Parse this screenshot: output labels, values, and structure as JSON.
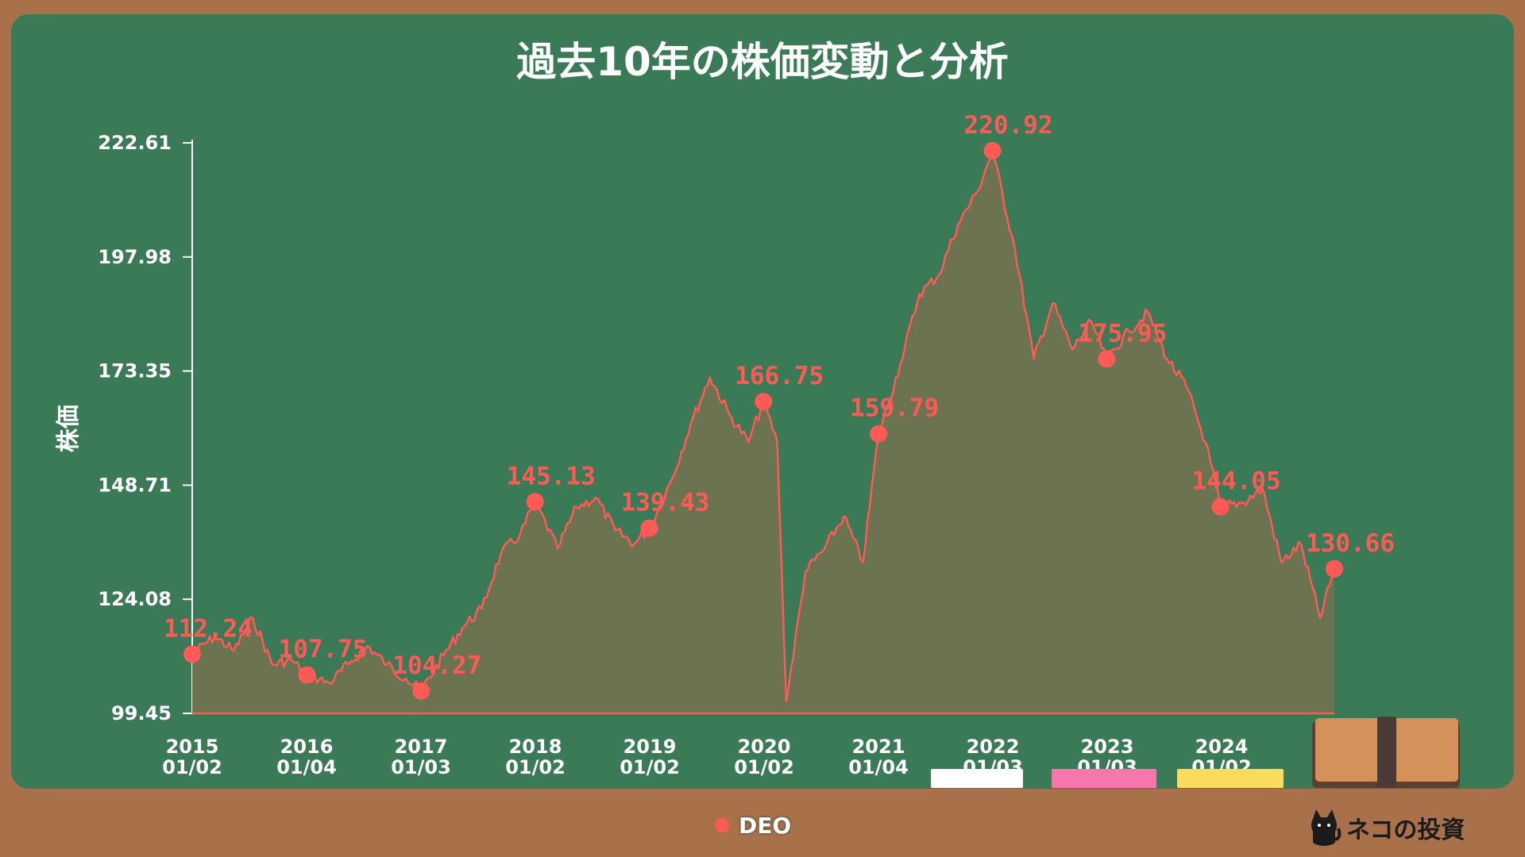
{
  "title": "過去10年の株価変動と分析",
  "ylabel": "株価",
  "legend": {
    "label": "DEO",
    "color": "#ff5a55"
  },
  "brand": {
    "text": "ネコの投資"
  },
  "colors": {
    "board": "#3b7a57",
    "frame": "#a8714a",
    "line": "#ff5a55",
    "fill": "#6f7350",
    "chalk_white": "#ffffff",
    "chalk_pink": "#f776ad",
    "chalk_yellow": "#f9dc5c",
    "eraser": "#d4925a"
  },
  "chart_data": {
    "type": "area",
    "series": [
      {
        "name": "DEO",
        "x": [
          "2015/01/02",
          "2015/03",
          "2015/05",
          "2015/07",
          "2015/09",
          "2015/11",
          "2016/01/04",
          "2016/03",
          "2016/05",
          "2016/07",
          "2016/09",
          "2016/11",
          "2017/01/03",
          "2017/03",
          "2017/05",
          "2017/07",
          "2017/09",
          "2017/11",
          "2018/01/02",
          "2018/03",
          "2018/05",
          "2018/07",
          "2018/09",
          "2018/11",
          "2019/01/02",
          "2019/03",
          "2019/05",
          "2019/07",
          "2019/09",
          "2019/11",
          "2020/01/02",
          "2020/02",
          "2020/03",
          "2020/05",
          "2020/07",
          "2020/09",
          "2020/11",
          "2021/01/04",
          "2021/03",
          "2021/05",
          "2021/07",
          "2021/09",
          "2021/11",
          "2022/01/03",
          "2022/03",
          "2022/05",
          "2022/07",
          "2022/09",
          "2022/11",
          "2023/01/03",
          "2023/03",
          "2023/05",
          "2023/07",
          "2023/09",
          "2023/11",
          "2024/01/02",
          "2024/03",
          "2024/05",
          "2024/07",
          "2024/09",
          "2024/11",
          "2024/12/31"
        ],
        "values": [
          112.24,
          116,
          113,
          120,
          110,
          111,
          107.75,
          106,
          110,
          114,
          110,
          107,
          104.27,
          112,
          118,
          122,
          134,
          138,
          145.13,
          135,
          144,
          146,
          139,
          136,
          139.43,
          150,
          162,
          172,
          164,
          158,
          166.75,
          158,
          102,
          130,
          135,
          142,
          132,
          159.79,
          175,
          190,
          194,
          205,
          212,
          220.92,
          200,
          176,
          188,
          178,
          184,
          175.95,
          182,
          186,
          176,
          170,
          158,
          144.05,
          145,
          148,
          132,
          136,
          120,
          130.66
        ]
      }
    ],
    "point_labels": [
      {
        "x": "2015/01/02",
        "value": "112.24"
      },
      {
        "x": "2016/01/04",
        "value": "107.75"
      },
      {
        "x": "2017/01/03",
        "value": "104.27"
      },
      {
        "x": "2018/01/02",
        "value": "145.13"
      },
      {
        "x": "2019/01/02",
        "value": "139.43"
      },
      {
        "x": "2020/01/02",
        "value": "166.75"
      },
      {
        "x": "2021/01/04",
        "value": "159.79"
      },
      {
        "x": "2022/01/03",
        "value": "220.92"
      },
      {
        "x": "2023/01/03",
        "value": "175.95"
      },
      {
        "x": "2024/01/02",
        "value": "144.05"
      },
      {
        "x": "2024/12/31",
        "value": "130.66"
      }
    ],
    "yticks": [
      "99.45",
      "124.08",
      "148.71",
      "173.35",
      "197.98",
      "222.61"
    ],
    "ylim": [
      99.45,
      222.61
    ],
    "xticks": [
      {
        "year": "2015",
        "date": "01/02"
      },
      {
        "year": "2016",
        "date": "01/04"
      },
      {
        "year": "2017",
        "date": "01/03"
      },
      {
        "year": "2018",
        "date": "01/02"
      },
      {
        "year": "2019",
        "date": "01/02"
      },
      {
        "year": "2020",
        "date": "01/02"
      },
      {
        "year": "2021",
        "date": "01/04"
      },
      {
        "year": "2022",
        "date": "01/03"
      },
      {
        "year": "2023",
        "date": "01/03"
      },
      {
        "year": "2024",
        "date": "01/02"
      }
    ],
    "grid": false,
    "legend_position": "bottom-center"
  }
}
